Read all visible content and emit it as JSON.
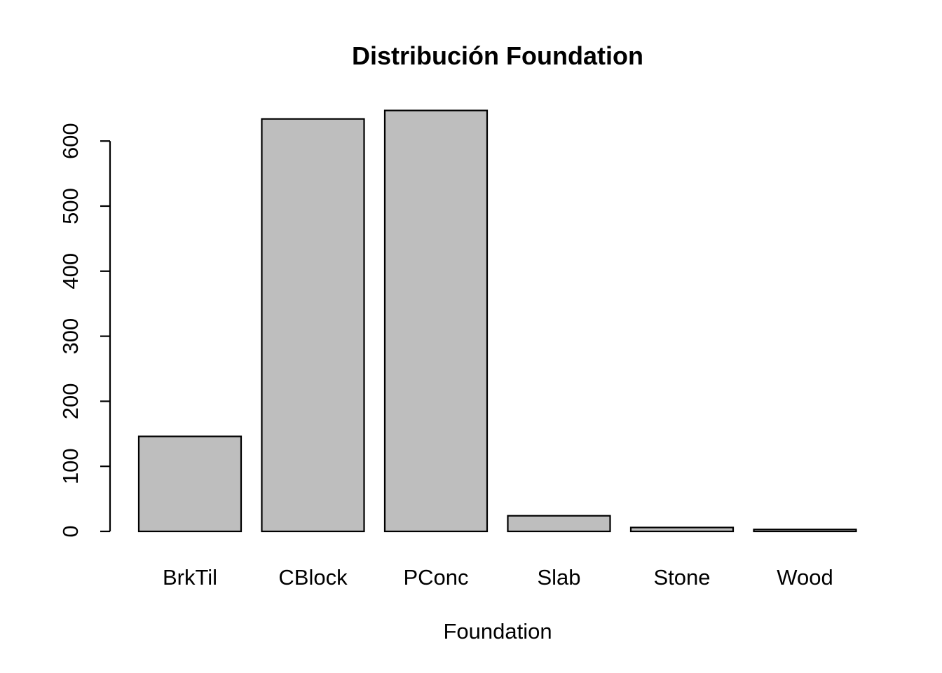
{
  "chart_data": {
    "type": "bar",
    "title": "Distribución Foundation",
    "xlabel": "Foundation",
    "ylabel": "",
    "categories": [
      "BrkTil",
      "CBlock",
      "PConc",
      "Slab",
      "Stone",
      "Wood"
    ],
    "values": [
      146,
      634,
      647,
      24,
      6,
      3
    ],
    "ylim": [
      0,
      600
    ],
    "yticks": [
      0,
      100,
      200,
      300,
      400,
      500,
      600
    ],
    "grid": false,
    "colors": {
      "bar_fill": "#bebebe",
      "bar_stroke": "#000000"
    }
  }
}
